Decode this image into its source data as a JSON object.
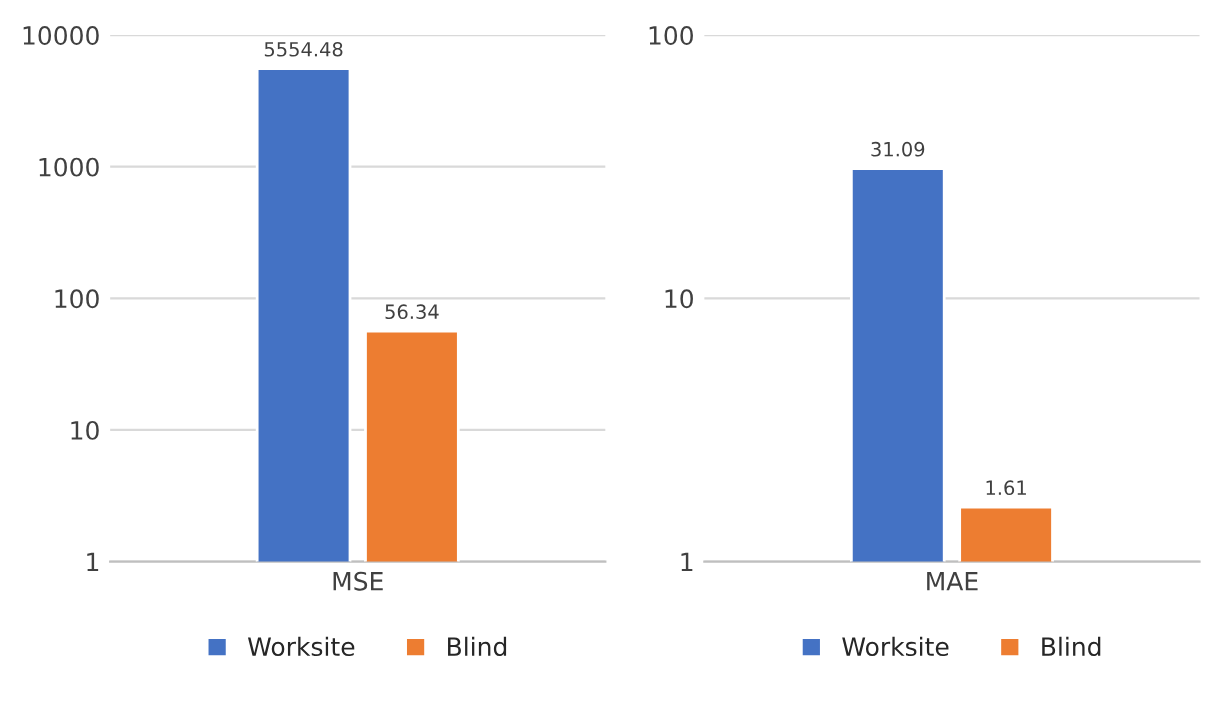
{
  "chart_data": [
    {
      "type": "bar",
      "categories": [
        "MSE"
      ],
      "log": true,
      "ylim": [
        1,
        10000
      ],
      "yticks": [
        1,
        10,
        100,
        1000,
        10000
      ],
      "grid": "y",
      "legend": "bottom",
      "data_labels": true,
      "series": [
        {
          "name": "Worksite",
          "color": "#4472c4",
          "values": [
            5554.48
          ]
        },
        {
          "name": "Blind",
          "color": "#ed7d31",
          "values": [
            56.34
          ]
        }
      ]
    },
    {
      "type": "bar",
      "categories": [
        "MAE"
      ],
      "log": true,
      "ylim": [
        1,
        100
      ],
      "yticks": [
        1,
        10,
        100
      ],
      "grid": "y",
      "legend": "bottom",
      "data_labels": true,
      "series": [
        {
          "name": "Worksite",
          "color": "#4472c4",
          "values": [
            31.09
          ]
        },
        {
          "name": "Blind",
          "color": "#ed7d31",
          "values": [
            1.61
          ]
        }
      ]
    }
  ]
}
